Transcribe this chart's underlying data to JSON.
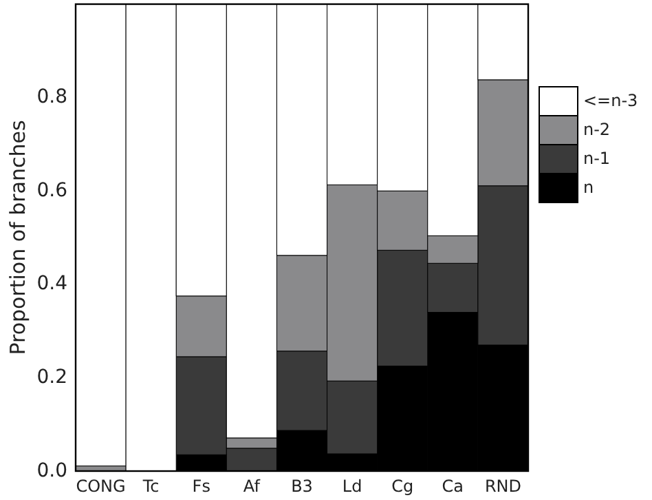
{
  "chart_data": {
    "type": "bar",
    "stacked": true,
    "ylabel": "Proportion of branches",
    "categories": [
      "CONG",
      "Tc",
      "Fs",
      "Af",
      "B3",
      "Ld",
      "Cg",
      "Ca",
      "RND"
    ],
    "series": [
      {
        "name": "n",
        "color": "#000000",
        "values": [
          0,
          0,
          0.035,
          0,
          0.087,
          0.037,
          0.225,
          0.34,
          0.27
        ]
      },
      {
        "name": "n-1",
        "color": "#3a3a3a",
        "values": [
          0,
          0,
          0.21,
          0.049,
          0.17,
          0.156,
          0.248,
          0.105,
          0.341
        ]
      },
      {
        "name": "n-2",
        "color": "#8a8a8c",
        "values": [
          0.011,
          0,
          0.13,
          0.022,
          0.205,
          0.42,
          0.127,
          0.059,
          0.227
        ]
      },
      {
        "name": "<=n-3",
        "color": "#ffffff",
        "values": [
          0.989,
          1,
          0.625,
          0.929,
          0.538,
          0.387,
          0.4,
          0.496,
          0.162
        ]
      }
    ],
    "ylim": [
      0,
      1
    ],
    "yticks": [
      {
        "value": 0,
        "label": "0.0"
      },
      0.2,
      0.4,
      0.6,
      0.8
    ],
    "legend": "right",
    "grid": false
  }
}
